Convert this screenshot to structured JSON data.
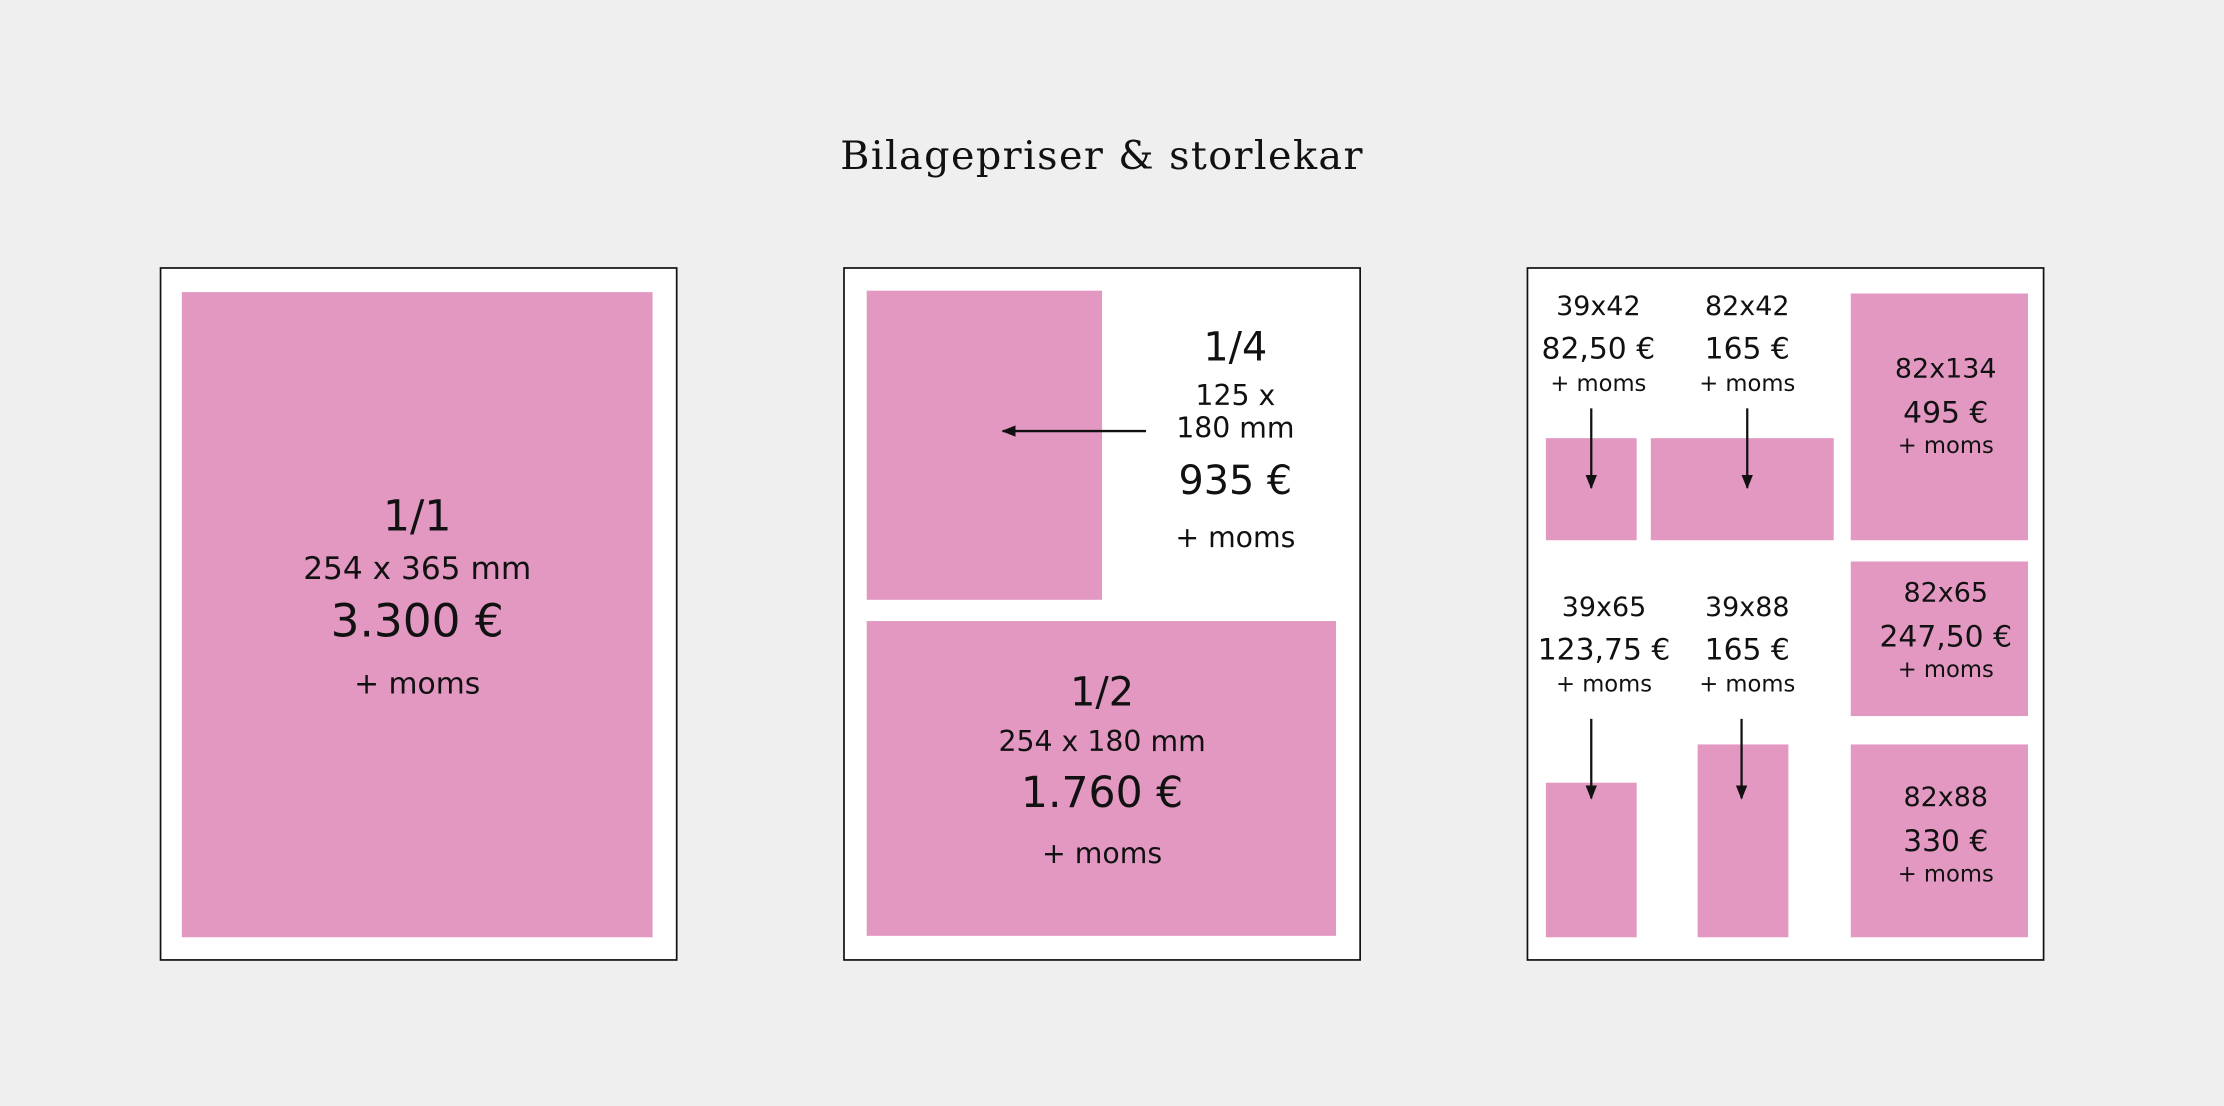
{
  "title": "Bilagepriser & storlekar",
  "panels": [
    {
      "items": [
        {
          "label": "1/1",
          "size": "254 x 365 mm",
          "price": "3.300 €",
          "vat": "+ moms"
        }
      ]
    },
    {
      "items": [
        {
          "label": "1/4",
          "size": [
            "125 x",
            "180 mm"
          ],
          "price": "935 €",
          "vat": "+ moms"
        },
        {
          "label": "1/2",
          "size": "254 x 180 mm",
          "price": "1.760 €",
          "vat": "+ moms"
        }
      ]
    },
    {
      "items": [
        {
          "label": "39x42",
          "price": "82,50 €",
          "vat": "+ moms"
        },
        {
          "label": "82x42",
          "price": "165 €",
          "vat": "+ moms"
        },
        {
          "label": "82x134",
          "price": "495 €",
          "vat": "+ moms"
        },
        {
          "label": "39x65",
          "price": "123,75 €",
          "vat": "+ moms"
        },
        {
          "label": "39x88",
          "price": "165 €",
          "vat": "+ moms"
        },
        {
          "label": "82x65",
          "price": "247,50 €",
          "vat": "+ moms"
        },
        {
          "label": "82x88",
          "price": "330 €",
          "vat": "+ moms"
        }
      ]
    }
  ]
}
